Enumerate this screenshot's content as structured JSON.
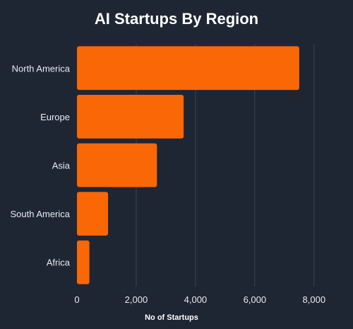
{
  "chart_data": {
    "type": "bar",
    "orientation": "horizontal",
    "title": "AI Startups By Region",
    "xlabel": "No of Startups",
    "ylabel": "",
    "categories": [
      "North America",
      "Europe",
      "Asia",
      "South America",
      "Africa"
    ],
    "values": [
      7500,
      3600,
      2700,
      1050,
      420
    ],
    "xlim": [
      0,
      8600
    ],
    "xticks": [
      0,
      2000,
      4000,
      6000,
      8000
    ],
    "xtick_labels": [
      "0",
      "2,000",
      "4,000",
      "6,000",
      "8,000"
    ],
    "grid": "vertical",
    "legend": "none",
    "colors": {
      "bar": "#f96707",
      "background": "#1f2633",
      "grid": "#3a4352"
    }
  }
}
